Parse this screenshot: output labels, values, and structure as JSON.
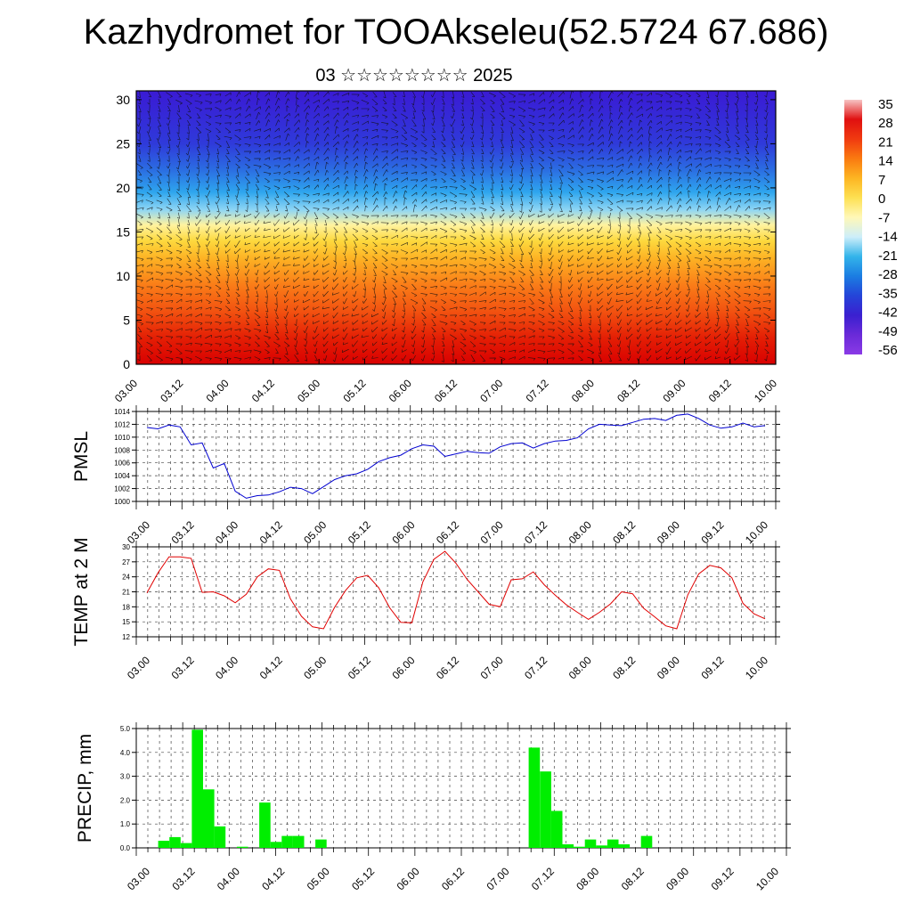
{
  "title": "Kazhydromet for TOOAkseleu(52.5724 67.686)",
  "subtitle": "03 ☆☆☆☆☆☆☆☆ 2025",
  "time_labels": [
    "03.00",
    "03.12",
    "04.00",
    "04.12",
    "05.00",
    "05.12",
    "06.00",
    "06.12",
    "07.00",
    "07.12",
    "08.00",
    "08.12",
    "09.00",
    "09.12",
    "10.00"
  ],
  "chart_data": [
    {
      "type": "heatmap",
      "description_of_field": "temperature with wind vectors vs height",
      "y_ticks": [
        0,
        5,
        10,
        15,
        20,
        25,
        30
      ],
      "ylim": [
        0,
        31
      ],
      "colorbar": {
        "labels": [
          "35",
          "28",
          "21",
          "14",
          "7",
          "0",
          "-7",
          "-14",
          "-21",
          "-28",
          "-35",
          "-42",
          "-49",
          "-56"
        ],
        "colors": [
          "#f7c4c4",
          "#e01010",
          "#f03a10",
          "#fa7a10",
          "#fdb522",
          "#fde052",
          "#fff8b8",
          "#cdeefa",
          "#33b4ea",
          "#1b7de2",
          "#2444d8",
          "#3a20d0",
          "#6a2ad8",
          "#8a3ae6"
        ]
      },
      "layers": [
        {
          "height": 0,
          "color": "#d90000"
        },
        {
          "height": 3,
          "color": "#e41f05"
        },
        {
          "height": 6,
          "color": "#f25210"
        },
        {
          "height": 9,
          "color": "#fa7d18"
        },
        {
          "height": 12,
          "color": "#fdb224"
        },
        {
          "height": 14,
          "color": "#fdd93e"
        },
        {
          "height": 15.8,
          "color": "#fff3a0"
        },
        {
          "height": 17.5,
          "color": "#8fd6f4"
        },
        {
          "height": 19.5,
          "color": "#2ea6ee"
        },
        {
          "height": 22,
          "color": "#2b6ee2"
        },
        {
          "height": 25,
          "color": "#2f3ada"
        },
        {
          "height": 31,
          "color": "#3a1ad4"
        }
      ]
    },
    {
      "type": "line",
      "ylabel": "PMSL",
      "ylim": [
        1000,
        1014
      ],
      "y_ticks": [
        1000,
        1002,
        1004,
        1006,
        1008,
        1010,
        1012,
        1014
      ],
      "x_step_hours": 3,
      "series": [
        {
          "color": "#0000d0",
          "values": [
            1011.5,
            1011.3,
            1011.9,
            1011.6,
            1008.8,
            1009.1,
            1005.2,
            1005.9,
            1001.6,
            1000.5,
            1000.9,
            1001.0,
            1001.5,
            1002.2,
            1002.0,
            1001.2,
            1002.3,
            1003.4,
            1004.0,
            1004.3,
            1005.0,
            1006.2,
            1006.8,
            1007.2,
            1008.2,
            1008.8,
            1008.6,
            1007.0,
            1007.4,
            1007.8,
            1007.6,
            1007.5,
            1008.5,
            1009.0,
            1009.1,
            1008.3,
            1009.0,
            1009.4,
            1009.5,
            1009.9,
            1011.3,
            1012.0,
            1011.9,
            1011.8,
            1012.3,
            1012.8,
            1012.9,
            1012.6,
            1013.4,
            1013.6,
            1012.9,
            1011.9,
            1011.4,
            1011.6,
            1012.2,
            1011.6,
            1011.8
          ]
        }
      ]
    },
    {
      "type": "line",
      "ylabel": "TEMP at 2 M",
      "ylim": [
        12,
        30
      ],
      "y_ticks": [
        12,
        15,
        18,
        21,
        24,
        27,
        30
      ],
      "x_step_hours": 3,
      "series": [
        {
          "color": "#e00000",
          "values": [
            20.8,
            24.8,
            28.0,
            28.0,
            27.7,
            20.9,
            21.0,
            20.2,
            18.8,
            20.5,
            24.0,
            25.6,
            25.3,
            19.6,
            16.1,
            14.0,
            13.6,
            17.9,
            21.3,
            23.8,
            24.3,
            21.8,
            17.8,
            14.9,
            14.8,
            23.0,
            27.5,
            29.1,
            26.7,
            23.5,
            21.0,
            18.5,
            18.0,
            23.4,
            23.6,
            25.0,
            22.4,
            20.3,
            18.4,
            16.9,
            15.5,
            16.9,
            18.6,
            21.0,
            20.6,
            17.7,
            16.0,
            14.2,
            13.6,
            20.4,
            24.6,
            26.3,
            25.8,
            23.8,
            18.7,
            16.6,
            15.6
          ]
        }
      ]
    },
    {
      "type": "bar",
      "ylabel": "PRECIP, mm",
      "ylim": [
        0,
        5
      ],
      "y_ticks": [
        "0.0",
        "1.0",
        "2.0",
        "3.0",
        "4.0",
        "5.0"
      ],
      "x_step_hours": 3,
      "bar_color": "#00ee00",
      "values": [
        0,
        0.3,
        0.45,
        0.2,
        4.95,
        2.45,
        0.9,
        0,
        0.05,
        0,
        1.9,
        0.25,
        0.5,
        0.5,
        0,
        0.35,
        0,
        0,
        0,
        0,
        0,
        0,
        0,
        0,
        0,
        0,
        0,
        0,
        0,
        0,
        0,
        0,
        0,
        0,
        4.2,
        3.2,
        1.55,
        0.15,
        0.05,
        0.35,
        0.1,
        0.35,
        0.15,
        0,
        0.5,
        0,
        0,
        0,
        0,
        0,
        0,
        0,
        0,
        0,
        0,
        0
      ]
    }
  ]
}
